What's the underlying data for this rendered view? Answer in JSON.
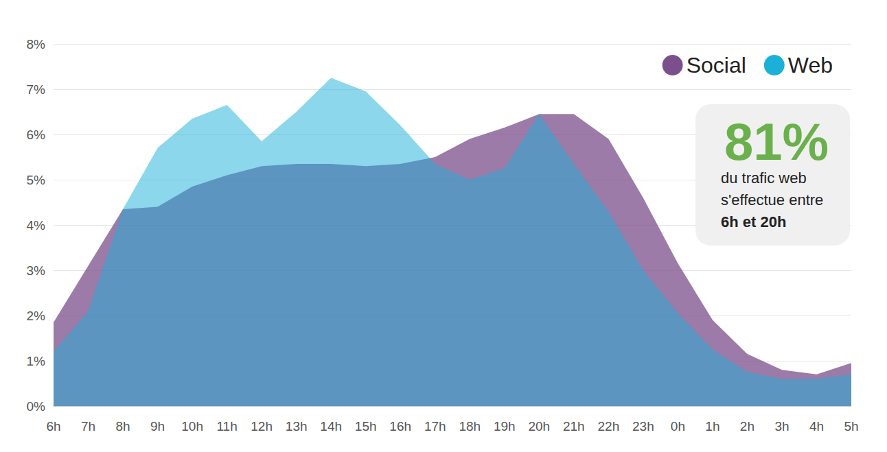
{
  "chart_data": {
    "type": "area",
    "categories": [
      "6h",
      "7h",
      "8h",
      "9h",
      "10h",
      "11h",
      "12h",
      "13h",
      "14h",
      "15h",
      "16h",
      "17h",
      "18h",
      "19h",
      "20h",
      "21h",
      "22h",
      "23h",
      "0h",
      "1h",
      "2h",
      "3h",
      "4h",
      "5h"
    ],
    "series": [
      {
        "name": "Social",
        "color": "#7b4f8c",
        "values": [
          1.85,
          3.1,
          4.35,
          4.4,
          4.85,
          5.1,
          5.3,
          5.35,
          5.35,
          5.3,
          5.35,
          5.5,
          5.9,
          6.15,
          6.45,
          6.45,
          5.9,
          4.6,
          3.15,
          1.9,
          1.15,
          0.8,
          0.7,
          0.95
        ]
      },
      {
        "name": "Web",
        "color": "#1ab0d8",
        "values": [
          1.2,
          2.1,
          4.35,
          5.7,
          6.35,
          6.65,
          5.85,
          6.5,
          7.25,
          6.95,
          6.2,
          5.35,
          5.0,
          5.25,
          6.45,
          5.35,
          4.3,
          3.0,
          2.05,
          1.25,
          0.75,
          0.6,
          0.6,
          0.7
        ]
      }
    ],
    "ylim": [
      0,
      8
    ],
    "yticks": [
      {
        "value": 0,
        "label": "0%"
      },
      {
        "value": 1,
        "label": "1%"
      },
      {
        "value": 2,
        "label": "2%"
      },
      {
        "value": 3,
        "label": "3%"
      },
      {
        "value": 4,
        "label": "4%"
      },
      {
        "value": 5,
        "label": "5%"
      },
      {
        "value": 6,
        "label": "6%"
      },
      {
        "value": 7,
        "label": "7%"
      },
      {
        "value": 8,
        "label": "8%"
      }
    ],
    "grid": true,
    "legend": "top-right",
    "annotation": {
      "highlight": "81%",
      "text": [
        "du trafic web",
        "s'effectue entre",
        "6h et 20h"
      ]
    }
  }
}
